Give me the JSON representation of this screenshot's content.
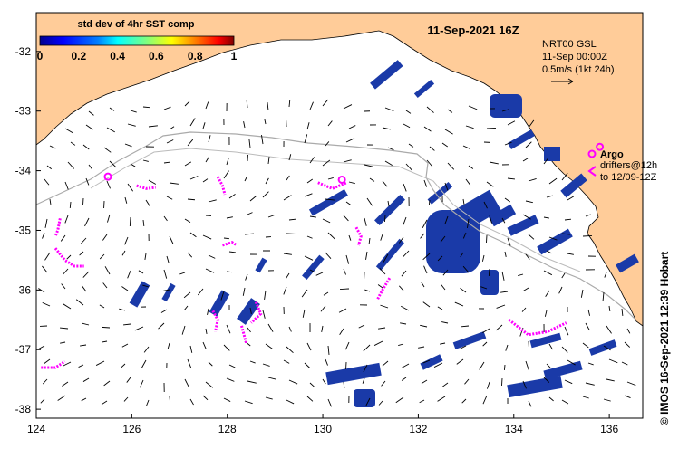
{
  "map": {
    "title": "11-Sep-2021 16Z",
    "colorbar": {
      "title": "std dev of 4hr SST comp",
      "ticks": [
        "0",
        "0.2",
        "0.4",
        "0.6",
        "0.8",
        "1"
      ],
      "colors": [
        "#00008f",
        "#0000ff",
        "#0080ff",
        "#00ffff",
        "#80ff80",
        "#ffff00",
        "#ff8000",
        "#ff0000",
        "#800000"
      ]
    },
    "current_legend": {
      "line1": "NRT00 GSL",
      "line2": "11-Sep 00:00Z",
      "line3": "0.5m/s (1kt 24h)"
    },
    "argo_legend": {
      "argo_label": "Argo",
      "drifters_line1": "drifters@12h",
      "drifters_line2": "to 12/09-12Z"
    },
    "credit": "© IMOS 16-Sep-2021 12:39 Hobart",
    "lon_ticks": [
      "124",
      "126",
      "128",
      "130",
      "132",
      "134",
      "136"
    ],
    "lat_ticks": [
      "-32",
      "-33",
      "-34",
      "-35",
      "-36",
      "-37",
      "-38"
    ],
    "lon_range": [
      124,
      136.7
    ],
    "lat_range": [
      -38.15,
      -31.35
    ],
    "colors": {
      "land": "#ffcc99",
      "sea": "#ffffff",
      "sst_high": "#1a3aa8",
      "drifter": "#ff00ff",
      "isobath": "#aaaaaa"
    },
    "argo_floats": [
      {
        "lon": 125.5,
        "lat": -34.1
      },
      {
        "lon": 130.4,
        "lat": -34.15
      },
      {
        "lon": 135.8,
        "lat": -33.6
      }
    ],
    "drifter_tracks": [
      {
        "points": [
          [
            126.1,
            -34.25
          ],
          [
            126.3,
            -34.3
          ],
          [
            126.5,
            -34.28
          ]
        ]
      },
      {
        "points": [
          [
            127.8,
            -34.1
          ],
          [
            127.9,
            -34.25
          ],
          [
            127.95,
            -34.4
          ]
        ]
      },
      {
        "points": [
          [
            124.5,
            -34.8
          ],
          [
            124.45,
            -35.0
          ],
          [
            124.4,
            -35.1
          ]
        ]
      },
      {
        "points": [
          [
            124.4,
            -35.3
          ],
          [
            124.6,
            -35.5
          ],
          [
            124.8,
            -35.6
          ],
          [
            125,
            -35.6
          ]
        ]
      },
      {
        "points": [
          [
            129.9,
            -34.2
          ],
          [
            130.2,
            -34.3
          ],
          [
            130.5,
            -34.2
          ]
        ]
      },
      {
        "points": [
          [
            130.7,
            -34.95
          ],
          [
            130.8,
            -35.1
          ],
          [
            130.75,
            -35.25
          ]
        ]
      },
      {
        "points": [
          [
            127.9,
            -35.25
          ],
          [
            128.1,
            -35.2
          ],
          [
            128.2,
            -35.25
          ]
        ]
      },
      {
        "points": [
          [
            131.4,
            -35.8
          ],
          [
            131.25,
            -36.0
          ],
          [
            131.15,
            -36.15
          ]
        ]
      },
      {
        "points": [
          [
            128.6,
            -36.2
          ],
          [
            128.7,
            -36.4
          ],
          [
            128.5,
            -36.55
          ]
        ]
      },
      {
        "points": [
          [
            127.7,
            -36.35
          ],
          [
            127.8,
            -36.5
          ],
          [
            127.75,
            -36.7
          ]
        ]
      },
      {
        "points": [
          [
            128.3,
            -36.6
          ],
          [
            128.35,
            -36.75
          ],
          [
            128.4,
            -36.9
          ]
        ]
      },
      {
        "points": [
          [
            133.9,
            -36.5
          ],
          [
            134.3,
            -36.75
          ],
          [
            134.7,
            -36.7
          ],
          [
            135.1,
            -36.55
          ]
        ]
      },
      {
        "points": [
          [
            124.1,
            -37.3
          ],
          [
            124.4,
            -37.3
          ],
          [
            124.6,
            -37.2
          ]
        ]
      }
    ]
  }
}
